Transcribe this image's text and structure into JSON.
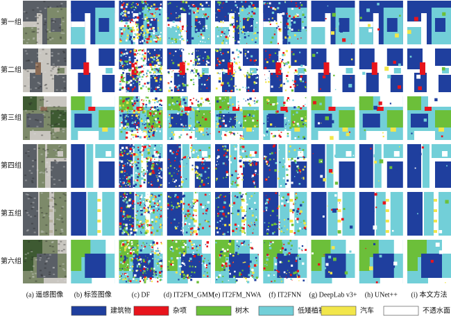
{
  "row_labels": [
    "第一组",
    "第二组",
    "第三组",
    "第四组",
    "第五组",
    "第六组"
  ],
  "column_captions": [
    "(a) 遥感图像",
    "(b) 标签图像",
    "(c) DF",
    "(d) IT2FM_GMM",
    "(e) IT2FM_NWA",
    "(f) IT2FNN",
    "(g) DeepLab v3+",
    "(h) UNet++",
    "(i) 本文方法"
  ],
  "legend": [
    {
      "label": "建筑物",
      "color": "#1f3f9e"
    },
    {
      "label": "杂项",
      "color": "#e8141c"
    },
    {
      "label": "树木",
      "color": "#6cbf3a"
    },
    {
      "label": "低矮植被",
      "color": "#72cfd8"
    },
    {
      "label": "汽车",
      "color": "#f2e64a"
    },
    {
      "label": "不透水面",
      "color": "#ffffff"
    }
  ]
}
